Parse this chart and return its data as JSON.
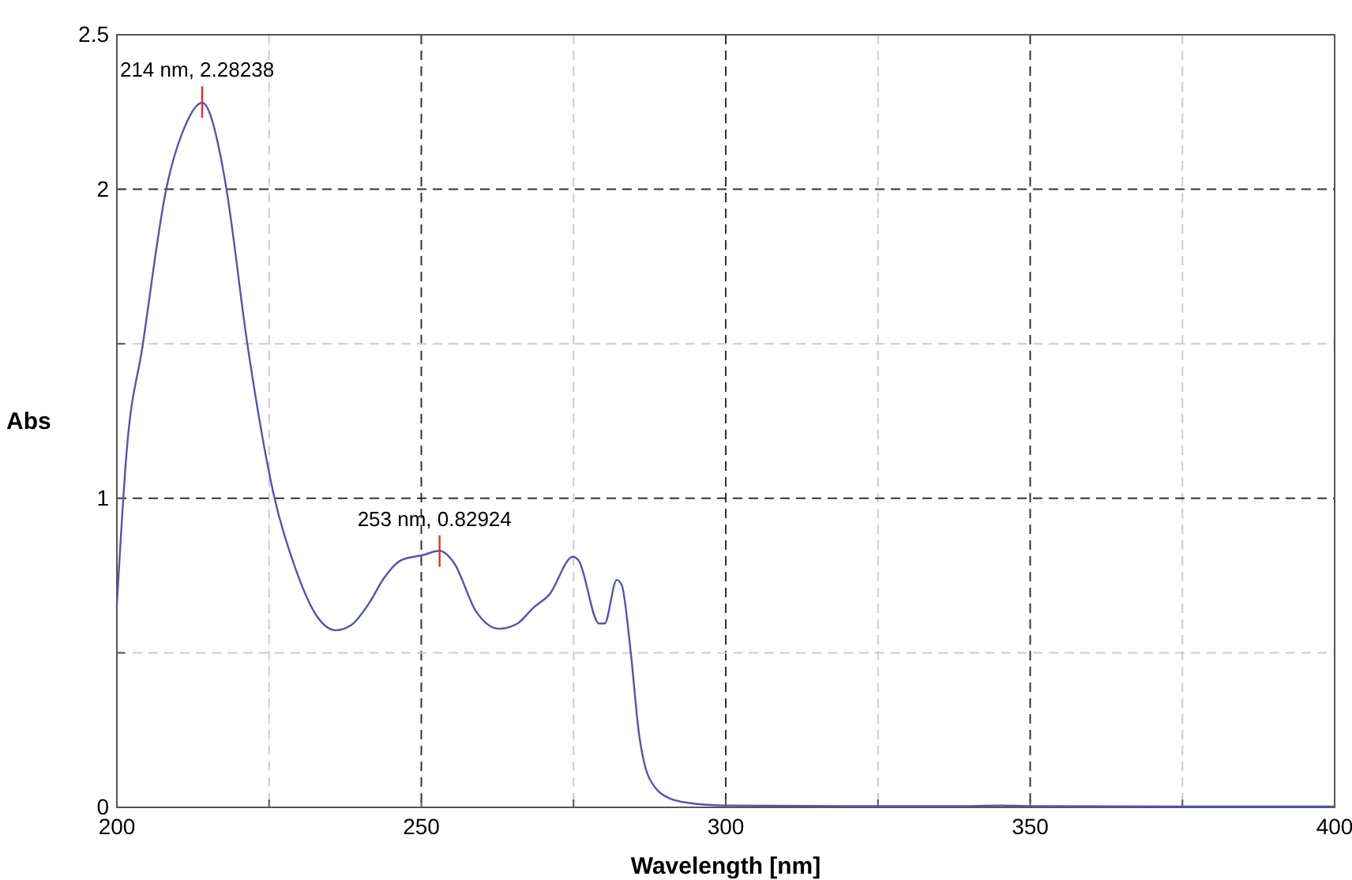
{
  "chart_data": {
    "type": "line",
    "xlabel": "Wavelength [nm]",
    "ylabel": "Abs",
    "xlim": [
      200,
      400
    ],
    "ylim": [
      0,
      2.5
    ],
    "xticks": [
      200,
      {
        "value": 225,
        "label": null
      },
      250,
      {
        "value": 275,
        "label": null
      },
      300,
      {
        "value": 325,
        "label": null
      },
      350,
      {
        "value": 375,
        "label": null
      },
      400
    ],
    "yticks": [
      0,
      {
        "value": 0.5,
        "label": null
      },
      1,
      {
        "value": 1.5,
        "label": null
      },
      2,
      2.5
    ],
    "grid": true,
    "line_style": "solid",
    "marker": "none",
    "annotations": [
      {
        "text": "214 nm, 2.28238",
        "x": 214,
        "y": 2.28238
      },
      {
        "text": "253 nm, 0.82924",
        "x": 253,
        "y": 0.82924
      }
    ],
    "series": [
      {
        "color": "#5555aa",
        "x": [
          200,
          201.6,
          204.2,
          208.1,
          211.1,
          214,
          217.2,
          218,
          221.5,
          225.9,
          229.3,
          232.8,
          235.9,
          238.5,
          241.5,
          243.8,
          246.7,
          250.2,
          253,
          255.4,
          258.9,
          262.8,
          265.8,
          268.4,
          271,
          274.9,
          275.8,
          279.2,
          280.1,
          282.1,
          282.9,
          284.4,
          285.7,
          287.5,
          290.9,
          295.3,
          300,
          320,
          340,
          345,
          350,
          375,
          400
        ],
        "values": [
          0.656,
          1.15,
          1.49,
          2.0,
          2.2,
          2.28,
          2.09,
          2.0,
          1.49,
          1.0,
          0.774,
          0.62,
          0.573,
          0.59,
          0.663,
          0.74,
          0.8,
          0.816,
          0.83,
          0.79,
          0.637,
          0.578,
          0.595,
          0.646,
          0.688,
          0.811,
          0.8,
          0.595,
          0.595,
          0.736,
          0.72,
          0.501,
          0.246,
          0.092,
          0.028,
          0.011,
          0.006,
          0.004,
          0.004,
          0.006,
          0.004,
          0.003,
          0.003
        ]
      }
    ]
  }
}
